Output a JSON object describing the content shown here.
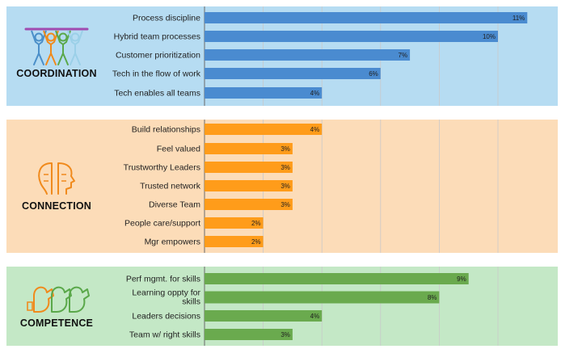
{
  "chart_data": {
    "type": "bar",
    "orientation": "horizontal",
    "value_format": "percent",
    "xlim": [
      0,
      12
    ],
    "grid": true,
    "sections": [
      {
        "title": "COORDINATION",
        "icon": "team-lifting-icon",
        "background": "#b6dcf2",
        "bar_color": "#4a8bd0",
        "categories": [
          "Process discipline",
          "Hybrid team processes",
          "Customer prioritization",
          "Tech in the flow of work",
          "Tech enables all teams"
        ],
        "values": [
          11,
          10,
          7,
          6,
          4
        ]
      },
      {
        "title": "CONNECTION",
        "icon": "two-faces-icon",
        "background": "#fcdcb8",
        "bar_color": "#ff9c1a",
        "categories": [
          "Build relationships",
          "Feel valued",
          "Trustworthy Leaders",
          "Trusted network",
          "Diverse Team",
          "People care/support",
          "Mgr empowers"
        ],
        "values": [
          4,
          3,
          3,
          3,
          3,
          2,
          2
        ]
      },
      {
        "title": "COMPETENCE",
        "icon": "flexing-arms-icon",
        "background": "#c4e8c6",
        "bar_color": "#6aaa4e",
        "categories": [
          "Perf mgmt. for skills",
          "Learning oppty for skills",
          "Leaders decisions",
          "Team w/ right skills"
        ],
        "values": [
          9,
          8,
          4,
          3
        ]
      }
    ]
  }
}
